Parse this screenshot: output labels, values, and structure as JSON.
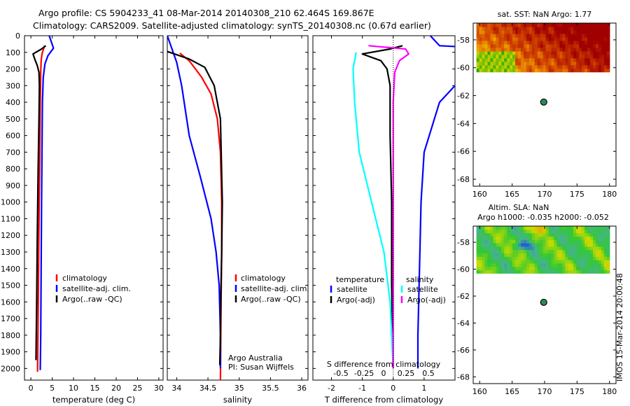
{
  "header": {
    "line1": "Argo profile: CS 5904233_41 08-Mar-2014 20140308_210 62.464S 169.867E",
    "line2": "Climatology: CARS2009. Satellite-adjusted climatology: synTS_20140308.nc (0.67d earlier)"
  },
  "footer_stamp": "IMOS 15-Mar-2014 20:00:48",
  "colors": {
    "climatology": "#ff0000",
    "satellite": "#0000ff",
    "argo": "#000000",
    "salinity_sat": "#00ffff",
    "salinity_argo": "#ff00ff"
  },
  "chart_data": [
    {
      "id": "temperature",
      "type": "line",
      "xlabel": "temperature (deg C)",
      "xlim": [
        -1.5,
        31
      ],
      "xticks": [
        0,
        5,
        10,
        15,
        20,
        25,
        30
      ],
      "ylim": [
        2070,
        0
      ],
      "yticks": [
        0,
        100,
        200,
        300,
        400,
        500,
        600,
        700,
        800,
        900,
        1000,
        1100,
        1200,
        1300,
        1400,
        1500,
        1600,
        1700,
        1800,
        1900,
        2000
      ],
      "legend": [
        "climatology",
        "satellite-adj. clim.",
        "Argo(..raw -QC)"
      ],
      "series": [
        {
          "name": "climatology",
          "color": "#ff0000",
          "points": [
            [
              3.2,
              60
            ],
            [
              2.6,
              110
            ],
            [
              2.4,
              150
            ],
            [
              2.3,
              220
            ],
            [
              2.2,
              400
            ],
            [
              2.1,
              700
            ],
            [
              1.95,
              1000
            ],
            [
              1.8,
              1400
            ],
            [
              1.65,
              1800
            ],
            [
              1.55,
              2020
            ]
          ]
        },
        {
          "name": "satellite-adj. clim.",
          "color": "#0000ff",
          "points": [
            [
              4.3,
              0
            ],
            [
              5.3,
              75
            ],
            [
              4.0,
              120
            ],
            [
              3.3,
              170
            ],
            [
              2.9,
              250
            ],
            [
              2.7,
              400
            ],
            [
              2.6,
              700
            ],
            [
              2.5,
              1000
            ],
            [
              2.4,
              1400
            ],
            [
              2.3,
              1800
            ],
            [
              2.2,
              2010
            ]
          ]
        },
        {
          "name": "Argo(..raw -QC)",
          "color": "#000000",
          "points": [
            [
              3.5,
              60
            ],
            [
              2.5,
              80
            ],
            [
              0.5,
              110
            ],
            [
              0.9,
              140
            ],
            [
              1.5,
              180
            ],
            [
              1.9,
              220
            ],
            [
              2.0,
              300
            ],
            [
              1.9,
              500
            ],
            [
              1.7,
              800
            ],
            [
              1.5,
              1200
            ],
            [
              1.35,
              1600
            ],
            [
              1.2,
              1950
            ]
          ]
        }
      ]
    },
    {
      "id": "salinity",
      "type": "line",
      "xlabel": "salinity",
      "xlim": [
        33.85,
        36.1
      ],
      "xticks": [
        34,
        34.5,
        35,
        35.5,
        36
      ],
      "ylim": [
        2070,
        0
      ],
      "legend": [
        "climatology",
        "satellite-adj. clim.",
        "Argo(..raw -QC)"
      ],
      "annotations": [
        "Argo Australia",
        "PI: Susan Wijffels"
      ],
      "series": [
        {
          "name": "climatology",
          "color": "#ff0000",
          "points": [
            [
              34.05,
              105
            ],
            [
              34.2,
              150
            ],
            [
              34.4,
              250
            ],
            [
              34.55,
              350
            ],
            [
              34.65,
              500
            ],
            [
              34.7,
              700
            ],
            [
              34.72,
              1000
            ],
            [
              34.72,
              1300
            ],
            [
              34.71,
              1600
            ],
            [
              34.7,
              2070
            ]
          ]
        },
        {
          "name": "satellite-adj. clim.",
          "color": "#0000ff",
          "points": [
            [
              33.85,
              0
            ],
            [
              34.0,
              160
            ],
            [
              34.08,
              300
            ],
            [
              34.2,
              600
            ],
            [
              34.38,
              850
            ],
            [
              34.55,
              1100
            ],
            [
              34.63,
              1300
            ],
            [
              34.68,
              1500
            ],
            [
              34.7,
              1800
            ],
            [
              34.7,
              2000
            ]
          ]
        },
        {
          "name": "Argo(..raw -QC)",
          "color": "#000000",
          "points": [
            [
              33.85,
              95
            ],
            [
              34.2,
              140
            ],
            [
              34.45,
              190
            ],
            [
              34.6,
              300
            ],
            [
              34.7,
              500
            ],
            [
              34.73,
              1000
            ],
            [
              34.72,
              1300
            ],
            [
              34.71,
              1500
            ],
            [
              34.7,
              1800
            ],
            [
              34.69,
              1980
            ]
          ]
        }
      ]
    },
    {
      "id": "difference",
      "type": "line",
      "xlabel": "T difference from climatology",
      "title_bottom": "S difference from climatology",
      "xlim": [
        -2.6,
        2.0
      ],
      "xticks": [
        -2,
        -1,
        0,
        1
      ],
      "top_ticks_labels": [
        "-0.5",
        "-0.25",
        "0",
        "0.25",
        "0.5"
      ],
      "ylim": [
        2070,
        0
      ],
      "legend": [
        "temperature",
        "satellite",
        "Argo(-adj)",
        "salinity",
        "satellite",
        "Argo(-adj)"
      ],
      "series": [
        {
          "name": "temperature satellite",
          "color": "#0000ff",
          "points": [
            [
              1.2,
              0
            ],
            [
              1.5,
              60
            ],
            [
              2.5,
              70
            ],
            [
              2.5,
              200
            ],
            [
              2.0,
              300
            ],
            [
              1.5,
              400
            ],
            [
              1.0,
              700
            ],
            [
              0.9,
              1000
            ],
            [
              0.85,
              1400
            ],
            [
              0.8,
              1800
            ],
            [
              0.8,
              2000
            ]
          ]
        },
        {
          "name": "temperature Argo(-adj)",
          "color": "#000000",
          "points": [
            [
              0.3,
              60
            ],
            [
              -0.1,
              80
            ],
            [
              -1.0,
              110
            ],
            [
              -0.4,
              150
            ],
            [
              -0.2,
              200
            ],
            [
              -0.1,
              300
            ],
            [
              -0.1,
              600
            ],
            [
              -0.05,
              1000
            ],
            [
              -0.05,
              1500
            ],
            [
              0,
              2000
            ]
          ]
        },
        {
          "name": "salinity satellite",
          "color": "#00ffff",
          "points": [
            [
              -1.2,
              100
            ],
            [
              -1.3,
              200
            ],
            [
              -1.25,
              400
            ],
            [
              -1.1,
              700
            ],
            [
              -0.7,
              1000
            ],
            [
              -0.3,
              1300
            ],
            [
              -0.1,
              1600
            ],
            [
              0,
              2000
            ]
          ]
        },
        {
          "name": "salinity Argo(-adj)",
          "color": "#ff00ff",
          "points": [
            [
              -0.8,
              60
            ],
            [
              0.4,
              80
            ],
            [
              0.5,
              110
            ],
            [
              0.2,
              150
            ],
            [
              0.05,
              220
            ],
            [
              0,
              400
            ],
            [
              0,
              1000
            ],
            [
              0,
              2000
            ]
          ]
        }
      ]
    },
    {
      "id": "sst_map",
      "type": "heatmap",
      "title": "sat. SST: NaN Argo: 1.77",
      "xlim": [
        159,
        181
      ],
      "ylim": [
        -68.5,
        -56.8
      ],
      "xticks": [
        160,
        165,
        170,
        175,
        180
      ],
      "yticks": [
        -58,
        -60,
        -62,
        -64,
        -66,
        -68
      ],
      "data_extent": {
        "lon": [
          159.5,
          180
        ],
        "lat": [
          -60.3,
          -56.8
        ]
      },
      "marker": {
        "lon": 169.867,
        "lat": -62.464
      }
    },
    {
      "id": "sla_map",
      "type": "heatmap",
      "title": "Altim. SLA: NaN",
      "subtitle": "Argo h1000: -0.035 h2000: -0.052",
      "xlim": [
        159,
        181
      ],
      "ylim": [
        -68.5,
        -56.8
      ],
      "xticks": [
        160,
        165,
        170,
        175,
        180
      ],
      "yticks": [
        -58,
        -60,
        -62,
        -64,
        -66,
        -68
      ],
      "data_extent": {
        "lon": [
          159.5,
          180
        ],
        "lat": [
          -60.3,
          -56.8
        ]
      },
      "marker": {
        "lon": 169.867,
        "lat": -62.464
      }
    }
  ]
}
